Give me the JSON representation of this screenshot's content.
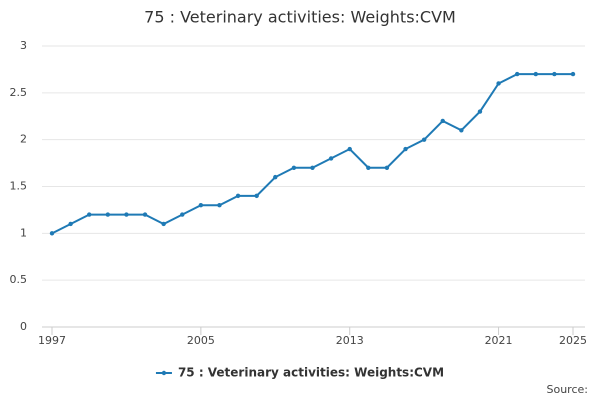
{
  "chart_data": {
    "type": "line",
    "title": "75 : Veterinary activities: Weights:CVM",
    "x": [
      1997,
      1998,
      1999,
      2000,
      2001,
      2002,
      2003,
      2004,
      2005,
      2006,
      2007,
      2008,
      2009,
      2010,
      2011,
      2012,
      2013,
      2014,
      2015,
      2016,
      2017,
      2018,
      2019,
      2020,
      2021,
      2022,
      2023,
      2024,
      2025
    ],
    "series": [
      {
        "name": "75 : Veterinary activities: Weights:CVM",
        "color": "#1f7ab5",
        "values": [
          1.0,
          1.1,
          1.2,
          1.2,
          1.2,
          1.2,
          1.1,
          1.2,
          1.3,
          1.3,
          1.4,
          1.4,
          1.6,
          1.7,
          1.7,
          1.8,
          1.9,
          1.7,
          1.7,
          1.9,
          2.0,
          2.2,
          2.1,
          2.3,
          2.6,
          2.7,
          2.7,
          2.7,
          2.7
        ]
      }
    ],
    "xlim": [
      1997,
      2025
    ],
    "xticks": [
      1997,
      2005,
      2013,
      2021,
      2025
    ],
    "ylim": [
      0,
      3
    ],
    "yticks": [
      0,
      0.5,
      1,
      1.5,
      2,
      2.5,
      3
    ],
    "grid": true,
    "legend": "bottom",
    "source": "Source:"
  }
}
